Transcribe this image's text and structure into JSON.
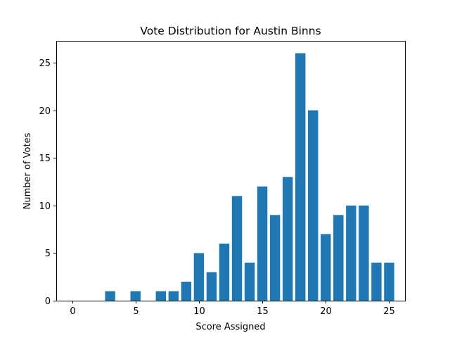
{
  "chart_data": {
    "type": "bar",
    "title": "Vote Distribution for Austin Binns",
    "xlabel": "Score Assigned",
    "ylabel": "Number of Votes",
    "x": [
      0,
      1,
      2,
      3,
      4,
      5,
      6,
      7,
      8,
      9,
      10,
      11,
      12,
      13,
      14,
      15,
      16,
      17,
      18,
      19,
      20,
      21,
      22,
      23,
      24,
      25
    ],
    "values": [
      0,
      0,
      0,
      1,
      0,
      1,
      0,
      1,
      1,
      2,
      5,
      3,
      6,
      11,
      4,
      12,
      9,
      13,
      26,
      20,
      7,
      9,
      10,
      10,
      4,
      4
    ],
    "xlim": [
      -1.25,
      26.25
    ],
    "ylim": [
      0,
      27.3
    ],
    "xticks": [
      0,
      5,
      10,
      15,
      20,
      25
    ],
    "yticks": [
      0,
      5,
      10,
      15,
      20,
      25
    ],
    "bar_color": "#1f77b4",
    "grid": false
  }
}
